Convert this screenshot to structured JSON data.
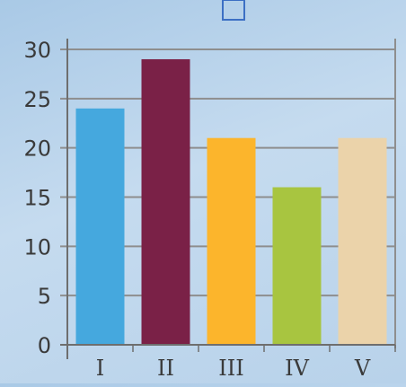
{
  "chart_data": {
    "type": "bar",
    "categories": [
      "I",
      "II",
      "III",
      "IV",
      "V"
    ],
    "values": [
      24,
      29,
      21,
      16,
      21
    ],
    "colors": [
      "#45a8de",
      "#7a2147",
      "#fcb52c",
      "#a8c540",
      "#ebd3aa"
    ],
    "ylim": [
      0,
      30
    ],
    "yticks": [
      0,
      5,
      10,
      15,
      20,
      25,
      30
    ],
    "grid": true,
    "title": "",
    "xlabel": "",
    "ylabel": ""
  },
  "legend_box": {
    "color": "#3c6fc4"
  },
  "colors": {
    "grid": "#8e8e8e",
    "axis": "#6e6e6e",
    "text": "#3a3a3a"
  }
}
